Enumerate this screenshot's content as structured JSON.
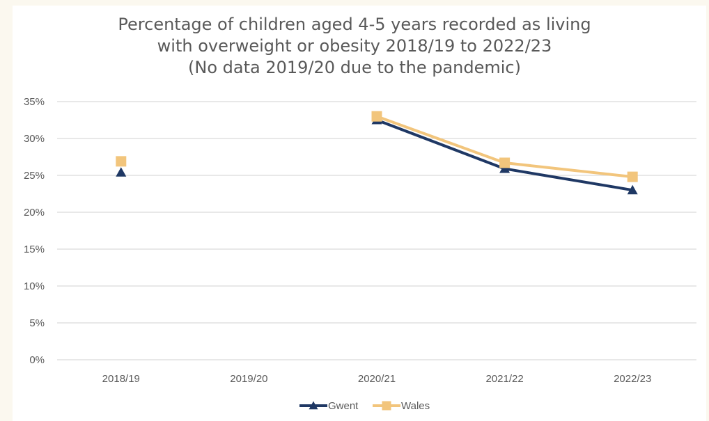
{
  "chart_data": {
    "type": "line",
    "title_lines": [
      "Percentage of children aged 4-5 years recorded as living",
      "with overweight or obesity 2018/19 to 2022/23",
      "(No data 2019/20 due to the pandemic)"
    ],
    "categories": [
      "2018/19",
      "2019/20",
      "2020/21",
      "2021/22",
      "2022/23"
    ],
    "ylim": [
      0,
      35
    ],
    "y_ticks": [
      0,
      5,
      10,
      15,
      20,
      25,
      30,
      35
    ],
    "y_tick_labels": [
      "0%",
      "5%",
      "10%",
      "15%",
      "20%",
      "25%",
      "30%",
      "35%"
    ],
    "grid": true,
    "legend_position": "bottom",
    "series": [
      {
        "name": "Gwent",
        "values": [
          25.4,
          null,
          32.5,
          25.9,
          23.0
        ],
        "color": "#1f3864",
        "marker": "triangle"
      },
      {
        "name": "Wales",
        "values": [
          26.9,
          null,
          33.0,
          26.7,
          24.8
        ],
        "color": "#f2c57c",
        "marker": "square"
      }
    ],
    "colors": {
      "gridline": "#d9d9d9",
      "axis_text": "#595959",
      "background": "#fbf8ef"
    }
  }
}
